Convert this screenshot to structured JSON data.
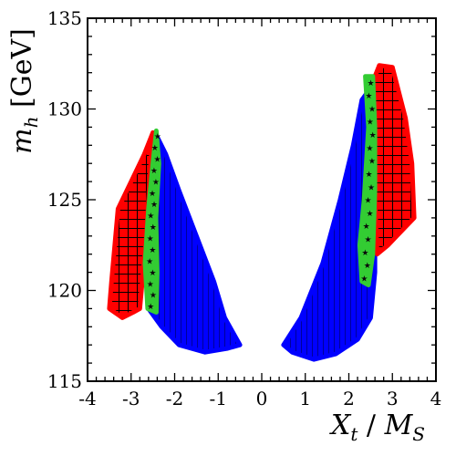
{
  "chart_data": {
    "type": "scatter",
    "title": "",
    "xlabel": {
      "main": "X",
      "sub1": "t",
      "slash": " / ",
      "main2": "M",
      "sub2": "S"
    },
    "ylabel": {
      "main": "m",
      "sub": "h",
      "unit": " [GeV]"
    },
    "xlim": [
      -4,
      4
    ],
    "ylim": [
      115,
      135
    ],
    "xticks": [
      -4,
      -3,
      -2,
      -1,
      0,
      1,
      2,
      3,
      4
    ],
    "yticks": [
      115,
      120,
      125,
      130,
      135
    ],
    "grid": false,
    "legend": "none",
    "series": [
      {
        "color": "#0000ff",
        "hatch": "vertical",
        "regions": [
          {
            "outline": [
              [
                -2.45,
                128.7
              ],
              [
                -2.2,
                127.5
              ],
              [
                -1.9,
                125.5
              ],
              [
                -1.5,
                123.0
              ],
              [
                -1.1,
                120.5
              ],
              [
                -0.85,
                118.5
              ],
              [
                -0.5,
                117.0
              ],
              [
                -0.8,
                116.8
              ],
              [
                -1.3,
                116.6
              ],
              [
                -1.9,
                117.0
              ],
              [
                -2.3,
                118.0
              ],
              [
                -2.6,
                119.0
              ],
              [
                -2.7,
                122.0
              ],
              [
                -2.7,
                126.0
              ]
            ]
          },
          {
            "outline": [
              [
                0.5,
                117.0
              ],
              [
                0.7,
                116.6
              ],
              [
                1.2,
                116.2
              ],
              [
                1.7,
                116.5
              ],
              [
                2.2,
                117.3
              ],
              [
                2.5,
                118.5
              ],
              [
                2.6,
                121.0
              ],
              [
                2.6,
                125.0
              ],
              [
                2.55,
                128.0
              ],
              [
                2.45,
                131.0
              ],
              [
                2.3,
                130.5
              ],
              [
                2.1,
                128.0
              ],
              [
                1.8,
                125.0
              ],
              [
                1.4,
                121.5
              ],
              [
                0.9,
                118.5
              ]
            ]
          }
        ]
      },
      {
        "color": "#ff0000",
        "hatch": "grid",
        "regions": [
          {
            "outline": [
              [
                -2.5,
                128.7
              ],
              [
                -2.7,
                127.5
              ],
              [
                -3.0,
                126.0
              ],
              [
                -3.3,
                124.5
              ],
              [
                -3.45,
                120.5
              ],
              [
                -3.5,
                119.0
              ],
              [
                -3.2,
                118.5
              ],
              [
                -2.95,
                118.8
              ],
              [
                -2.8,
                119.0
              ],
              [
                -2.65,
                123.0
              ],
              [
                -2.55,
                127.0
              ]
            ]
          },
          {
            "outline": [
              [
                2.55,
                131.5
              ],
              [
                2.7,
                132.4
              ],
              [
                3.0,
                132.3
              ],
              [
                3.3,
                129.5
              ],
              [
                3.45,
                127.0
              ],
              [
                3.5,
                124.0
              ],
              [
                3.1,
                123.0
              ],
              [
                2.9,
                122.5
              ],
              [
                2.65,
                122.0
              ],
              [
                2.6,
                125.0
              ],
              [
                2.55,
                128.0
              ]
            ]
          }
        ]
      },
      {
        "color": "#33cc33",
        "hatch": "none",
        "regions": [
          {
            "outline": [
              [
                -2.42,
                128.8
              ],
              [
                -2.5,
                127.0
              ],
              [
                -2.6,
                124.5
              ],
              [
                -2.68,
                121.5
              ],
              [
                -2.62,
                119.0
              ],
              [
                -2.42,
                118.8
              ],
              [
                -2.4,
                121.0
              ],
              [
                -2.43,
                124.0
              ],
              [
                -2.36,
                127.0
              ]
            ]
          },
          {
            "outline": [
              [
                2.38,
                131.8
              ],
              [
                2.45,
                129.0
              ],
              [
                2.35,
                125.0
              ],
              [
                2.25,
                122.5
              ],
              [
                2.3,
                120.5
              ],
              [
                2.45,
                120.3
              ],
              [
                2.55,
                122.0
              ],
              [
                2.6,
                125.5
              ],
              [
                2.6,
                129.0
              ],
              [
                2.55,
                131.8
              ]
            ]
          }
        ]
      }
    ]
  }
}
